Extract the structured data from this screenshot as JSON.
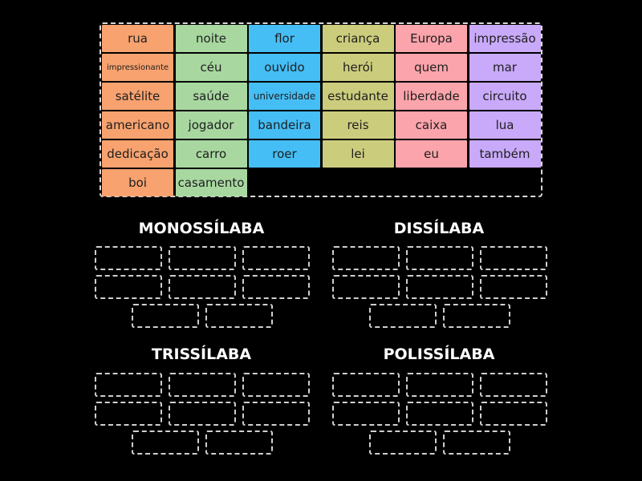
{
  "colors": {
    "orange": "#f7a26f",
    "green": "#a8d8a0",
    "blue": "#45bef5",
    "olive": "#cccc7d",
    "pink": "#fba4ab",
    "purple": "#c9a9f9"
  },
  "word_bank": [
    {
      "text": "rua",
      "col": 0,
      "row": 0
    },
    {
      "text": "impressionante",
      "col": 0,
      "row": 1,
      "size": "small"
    },
    {
      "text": "satélite",
      "col": 0,
      "row": 2
    },
    {
      "text": "americano",
      "col": 0,
      "row": 3
    },
    {
      "text": "dedicação",
      "col": 0,
      "row": 4
    },
    {
      "text": "boi",
      "col": 0,
      "row": 5
    },
    {
      "text": "noite",
      "col": 1,
      "row": 0
    },
    {
      "text": "céu",
      "col": 1,
      "row": 1
    },
    {
      "text": "saúde",
      "col": 1,
      "row": 2
    },
    {
      "text": "jogador",
      "col": 1,
      "row": 3
    },
    {
      "text": "carro",
      "col": 1,
      "row": 4
    },
    {
      "text": "casamento",
      "col": 1,
      "row": 5
    },
    {
      "text": "flor",
      "col": 2,
      "row": 0
    },
    {
      "text": "ouvido",
      "col": 2,
      "row": 1
    },
    {
      "text": "universidade",
      "col": 2,
      "row": 2,
      "size": "mid"
    },
    {
      "text": "bandeira",
      "col": 2,
      "row": 3
    },
    {
      "text": "roer",
      "col": 2,
      "row": 4
    },
    {
      "text": "criança",
      "col": 3,
      "row": 0
    },
    {
      "text": "herói",
      "col": 3,
      "row": 1
    },
    {
      "text": "estudante",
      "col": 3,
      "row": 2
    },
    {
      "text": "reis",
      "col": 3,
      "row": 3
    },
    {
      "text": "lei",
      "col": 3,
      "row": 4
    },
    {
      "text": "Europa",
      "col": 4,
      "row": 0
    },
    {
      "text": "quem",
      "col": 4,
      "row": 1
    },
    {
      "text": "liberdade",
      "col": 4,
      "row": 2
    },
    {
      "text": "caixa",
      "col": 4,
      "row": 3
    },
    {
      "text": "eu",
      "col": 4,
      "row": 4
    },
    {
      "text": "impressão",
      "col": 5,
      "row": 0
    },
    {
      "text": "mar",
      "col": 5,
      "row": 1
    },
    {
      "text": "circuito",
      "col": 5,
      "row": 2
    },
    {
      "text": "lua",
      "col": 5,
      "row": 3
    },
    {
      "text": "também",
      "col": 5,
      "row": 4
    }
  ],
  "groups": [
    {
      "title": "MONOSSÍLABA",
      "slots": 8
    },
    {
      "title": "DISSÍLABA",
      "slots": 8
    },
    {
      "title": "TRISSÍLABA",
      "slots": 8
    },
    {
      "title": "POLISSÍLABA",
      "slots": 8
    }
  ]
}
